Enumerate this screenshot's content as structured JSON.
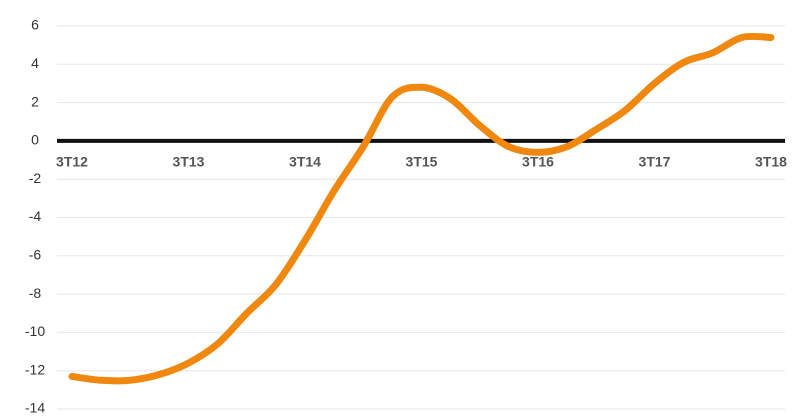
{
  "chart_data": {
    "type": "line",
    "categories": [
      "3T12",
      null,
      null,
      null,
      "3T13",
      null,
      null,
      null,
      "3T14",
      null,
      null,
      null,
      "3T15",
      null,
      null,
      null,
      "3T16",
      null,
      null,
      null,
      "3T17",
      null,
      null,
      null,
      "3T18"
    ],
    "series": [
      {
        "name": null,
        "color": "#f0870f",
        "values": [
          -12.3,
          -12.5,
          -12.5,
          -12.2,
          -11.6,
          -10.6,
          -9.0,
          -7.5,
          -5.2,
          -2.6,
          -0.3,
          2.3,
          2.8,
          2.2,
          0.8,
          -0.3,
          -0.6,
          -0.3,
          0.6,
          1.6,
          3.0,
          4.1,
          4.6,
          5.4,
          5.4
        ]
      }
    ],
    "ylim": [
      -14,
      6
    ],
    "yticks": [
      -14,
      -12,
      -10,
      -8,
      -6,
      -4,
      -2,
      0,
      2,
      4,
      6
    ],
    "grid": true
  }
}
